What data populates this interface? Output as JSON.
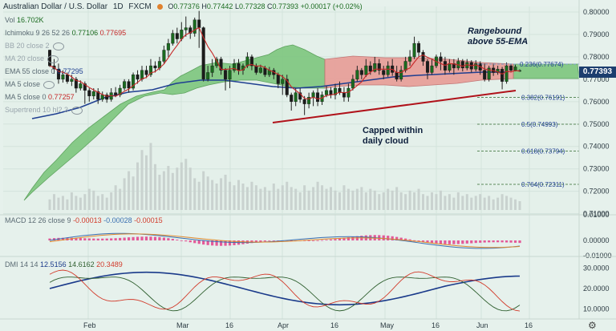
{
  "header": {
    "title": "Australian Dollar / U.S. Dollar",
    "interval": "1D",
    "exchange": "FXCM",
    "o_label": "O",
    "o": "0.77376",
    "h_label": "H",
    "h": "0.77442",
    "l_label": "L",
    "l": "0.77328",
    "c_label": "C",
    "c": "0.77393",
    "change": "+0.00017 (+0.02%)"
  },
  "indicators": {
    "vol_label": "Vol",
    "vol_value": "16.702K",
    "ichimoku_label": "Ichimoku 9 26 52 26",
    "ichimoku_v1": "0.77106",
    "ichimoku_v2": "0.77695",
    "bb_label": "BB 20 close 2",
    "ma20_label": "MA 20 close",
    "ema_label": "EMA 55 close 0",
    "ema_value": "0.77295",
    "ma_label": "MA 5 close",
    "ma_value": "",
    "ma5_label": "MA 5 close 0",
    "ma5_value": "0.77257",
    "supertrend_label": "Supertrend 10 hl2 3"
  },
  "annotations": {
    "rangebound_line1": "Rangebound",
    "rangebound_line2": "above 55-EMA",
    "capped_line1": "Capped within",
    "capped_line2": "daily cloud"
  },
  "fib": [
    {
      "label": "0.236(0.77674)",
      "price": 0.77674
    },
    {
      "label": "0.382(0.76191)",
      "price": 0.76191
    },
    {
      "label": "0.5(0.74993)",
      "price": 0.74993
    },
    {
      "label": "0.618(0.73794)",
      "price": 0.73794
    },
    {
      "label": "0.764(0.72311)",
      "price": 0.72311
    }
  ],
  "price_tag": "0.77393",
  "macd": {
    "label": "MACD 12 26 close 9",
    "v1": "-0.00013",
    "v2": "-0.00028",
    "v3": "-0.00015"
  },
  "dmi": {
    "label": "DMI 14 14",
    "v1": "12.5156",
    "v2": "14.6162",
    "v3": "20.3489"
  },
  "colors": {
    "up": "#1a6b1f",
    "down": "#b5271e",
    "cloud_green": "#7ec67e",
    "cloud_red": "#e8a09a",
    "ema": "#1f3f91",
    "ma5": "#c62828",
    "trendline": "#b0121a",
    "macd_hist": "#e33d8a",
    "dmi_adx": "#1a3a8a",
    "dmi_plus": "#2f5f2f",
    "dmi_minus": "#d23a2a"
  },
  "chart_data": {
    "type": "candlestick",
    "price_axis_ticks": [
      "0.80000",
      "0.79000",
      "0.78000",
      "0.77000",
      "0.76000",
      "0.75000",
      "0.74000",
      "0.73000",
      "0.72000",
      "0.71000"
    ],
    "macd_axis_ticks": [
      "0.01000",
      "0.00000",
      "-0.01000"
    ],
    "dmi_axis_ticks": [
      "30.0000",
      "20.0000",
      "10.0000"
    ],
    "x_labels": [
      "Feb",
      "Mar",
      "16",
      "Apr",
      "16",
      "May",
      "16",
      "Jun",
      "16"
    ],
    "ylim": [
      0.7095,
      0.8025
    ],
    "candles": [
      [
        0.783,
        0.776,
        0.7755,
        0.7832
      ],
      [
        0.776,
        0.7745,
        0.7725,
        0.779
      ],
      [
        0.7745,
        0.77,
        0.768,
        0.777
      ],
      [
        0.77,
        0.772,
        0.7685,
        0.774
      ],
      [
        0.772,
        0.769,
        0.768,
        0.773
      ],
      [
        0.769,
        0.77,
        0.767,
        0.772
      ],
      [
        0.77,
        0.766,
        0.764,
        0.771
      ],
      [
        0.766,
        0.768,
        0.765,
        0.7695
      ],
      [
        0.768,
        0.765,
        0.759,
        0.769
      ],
      [
        0.765,
        0.7625,
        0.76,
        0.766
      ],
      [
        0.7625,
        0.7645,
        0.761,
        0.766
      ],
      [
        0.7645,
        0.761,
        0.759,
        0.766
      ],
      [
        0.761,
        0.763,
        0.76,
        0.7645
      ],
      [
        0.763,
        0.761,
        0.7595,
        0.764
      ],
      [
        0.761,
        0.764,
        0.76,
        0.766
      ],
      [
        0.764,
        0.763,
        0.762,
        0.7665
      ],
      [
        0.763,
        0.766,
        0.762,
        0.7675
      ],
      [
        0.766,
        0.769,
        0.765,
        0.77
      ],
      [
        0.769,
        0.766,
        0.764,
        0.77
      ],
      [
        0.766,
        0.772,
        0.765,
        0.773
      ],
      [
        0.772,
        0.77,
        0.768,
        0.774
      ],
      [
        0.77,
        0.774,
        0.769,
        0.776
      ],
      [
        0.774,
        0.772,
        0.7705,
        0.776
      ],
      [
        0.772,
        0.776,
        0.771,
        0.779
      ],
      [
        0.776,
        0.775,
        0.773,
        0.778
      ],
      [
        0.775,
        0.778,
        0.774,
        0.78
      ],
      [
        0.778,
        0.783,
        0.777,
        0.785
      ],
      [
        0.783,
        0.786,
        0.78,
        0.788
      ],
      [
        0.786,
        0.7905,
        0.785,
        0.792
      ],
      [
        0.7905,
        0.788,
        0.786,
        0.793
      ],
      [
        0.788,
        0.792,
        0.787,
        0.7955
      ],
      [
        0.792,
        0.793,
        0.789,
        0.798
      ],
      [
        0.793,
        0.7905,
        0.788,
        0.794
      ],
      [
        0.7905,
        0.7965,
        0.789,
        0.7975
      ],
      [
        0.7965,
        0.793,
        0.784,
        0.8005
      ],
      [
        0.793,
        0.77,
        0.769,
        0.7935
      ],
      [
        0.77,
        0.773,
        0.769,
        0.776
      ],
      [
        0.773,
        0.776,
        0.771,
        0.779
      ],
      [
        0.776,
        0.779,
        0.775,
        0.78
      ],
      [
        0.779,
        0.774,
        0.772,
        0.78
      ],
      [
        0.774,
        0.77,
        0.765,
        0.775
      ],
      [
        0.77,
        0.774,
        0.766,
        0.776
      ],
      [
        0.774,
        0.777,
        0.773,
        0.779
      ],
      [
        0.777,
        0.774,
        0.772,
        0.779
      ],
      [
        0.774,
        0.776,
        0.772,
        0.777
      ],
      [
        0.776,
        0.78,
        0.775,
        0.782
      ],
      [
        0.78,
        0.776,
        0.774,
        0.781
      ],
      [
        0.776,
        0.773,
        0.772,
        0.777
      ],
      [
        0.773,
        0.775,
        0.7725,
        0.7765
      ],
      [
        0.775,
        0.772,
        0.771,
        0.776
      ],
      [
        0.772,
        0.774,
        0.771,
        0.7755
      ],
      [
        0.774,
        0.772,
        0.77,
        0.775
      ],
      [
        0.772,
        0.768,
        0.766,
        0.773
      ],
      [
        0.768,
        0.77,
        0.763,
        0.772
      ],
      [
        0.77,
        0.763,
        0.762,
        0.772
      ],
      [
        0.763,
        0.76,
        0.756,
        0.764
      ],
      [
        0.76,
        0.764,
        0.758,
        0.766
      ],
      [
        0.764,
        0.761,
        0.7595,
        0.766
      ],
      [
        0.761,
        0.759,
        0.754,
        0.7625
      ],
      [
        0.759,
        0.762,
        0.757,
        0.764
      ],
      [
        0.762,
        0.764,
        0.758,
        0.765
      ],
      [
        0.764,
        0.76,
        0.758,
        0.766
      ],
      [
        0.76,
        0.763,
        0.7585,
        0.7645
      ],
      [
        0.763,
        0.765,
        0.762,
        0.767
      ],
      [
        0.765,
        0.763,
        0.7615,
        0.7665
      ],
      [
        0.763,
        0.766,
        0.761,
        0.768
      ],
      [
        0.766,
        0.764,
        0.763,
        0.769
      ],
      [
        0.764,
        0.762,
        0.76,
        0.7665
      ],
      [
        0.762,
        0.766,
        0.76,
        0.768
      ],
      [
        0.766,
        0.77,
        0.765,
        0.772
      ],
      [
        0.77,
        0.774,
        0.769,
        0.776
      ],
      [
        0.774,
        0.772,
        0.77,
        0.775
      ],
      [
        0.772,
        0.776,
        0.771,
        0.779
      ],
      [
        0.776,
        0.7735,
        0.772,
        0.778
      ],
      [
        0.7735,
        0.777,
        0.773,
        0.78
      ],
      [
        0.777,
        0.774,
        0.772,
        0.779
      ],
      [
        0.774,
        0.772,
        0.77,
        0.776
      ],
      [
        0.772,
        0.776,
        0.771,
        0.778
      ],
      [
        0.776,
        0.773,
        0.7715,
        0.779
      ],
      [
        0.773,
        0.77,
        0.769,
        0.776
      ],
      [
        0.77,
        0.774,
        0.769,
        0.776
      ],
      [
        0.774,
        0.778,
        0.773,
        0.78
      ],
      [
        0.778,
        0.78,
        0.776,
        0.783
      ],
      [
        0.78,
        0.786,
        0.779,
        0.789
      ],
      [
        0.786,
        0.782,
        0.78,
        0.787
      ],
      [
        0.782,
        0.778,
        0.776,
        0.783
      ],
      [
        0.778,
        0.773,
        0.77,
        0.779
      ],
      [
        0.773,
        0.776,
        0.772,
        0.779
      ],
      [
        0.776,
        0.78,
        0.775,
        0.781
      ],
      [
        0.78,
        0.778,
        0.774,
        0.782
      ],
      [
        0.778,
        0.774,
        0.772,
        0.78
      ],
      [
        0.774,
        0.777,
        0.773,
        0.779
      ],
      [
        0.777,
        0.775,
        0.772,
        0.779
      ],
      [
        0.775,
        0.778,
        0.774,
        0.7795
      ],
      [
        0.778,
        0.775,
        0.7735,
        0.779
      ],
      [
        0.775,
        0.7775,
        0.774,
        0.779
      ],
      [
        0.7775,
        0.7745,
        0.773,
        0.7785
      ],
      [
        0.7745,
        0.777,
        0.7735,
        0.7785
      ],
      [
        0.777,
        0.774,
        0.772,
        0.778
      ],
      [
        0.774,
        0.77,
        0.769,
        0.777
      ],
      [
        0.77,
        0.775,
        0.769,
        0.776
      ],
      [
        0.775,
        0.773,
        0.7715,
        0.777
      ],
      [
        0.773,
        0.7745,
        0.772,
        0.776
      ],
      [
        0.7745,
        0.769,
        0.7655,
        0.7755
      ],
      [
        0.769,
        0.776,
        0.768,
        0.7775
      ],
      [
        0.776,
        0.774,
        0.773,
        0.777
      ],
      [
        0.774,
        0.7755,
        0.7735,
        0.7765
      ],
      [
        0.7738,
        0.7739,
        0.7733,
        0.7744
      ]
    ],
    "ema55": [
      0.7655,
      0.766,
      0.7664,
      0.7667,
      0.767,
      0.7675,
      0.768,
      0.7685,
      0.769,
      0.7695,
      0.77,
      0.7705,
      0.7708,
      0.771,
      0.7712,
      0.7714,
      0.7716,
      0.7718,
      0.772,
      0.7722,
      0.7722,
      0.7723,
      0.7724,
      0.7725,
      0.7726,
      0.7727,
      0.7728,
      0.7729,
      0.773,
      0.773
    ],
    "volume": [
      6,
      9,
      7,
      8,
      6,
      10,
      8,
      7,
      9,
      12,
      11,
      8,
      9,
      7,
      10,
      14,
      12,
      18,
      22,
      19,
      27,
      34,
      31,
      38,
      26,
      20,
      22,
      25,
      21,
      24,
      27,
      29,
      24,
      18,
      16,
      22,
      19,
      17,
      15,
      18,
      20,
      16,
      14,
      17,
      15,
      13,
      16,
      14,
      12,
      13,
      11,
      15,
      12,
      14,
      16,
      13,
      12,
      10,
      14,
      11,
      13,
      16,
      14,
      12,
      13,
      11,
      10,
      14,
      12,
      11,
      12,
      13,
      10,
      12,
      11,
      9,
      10,
      12,
      11,
      13,
      10,
      9,
      11,
      10,
      12,
      9,
      8,
      10,
      9,
      11,
      8,
      9,
      7,
      10,
      8,
      9,
      7,
      8,
      9,
      7,
      8,
      6,
      7,
      9,
      8,
      7,
      6,
      5
    ]
  }
}
